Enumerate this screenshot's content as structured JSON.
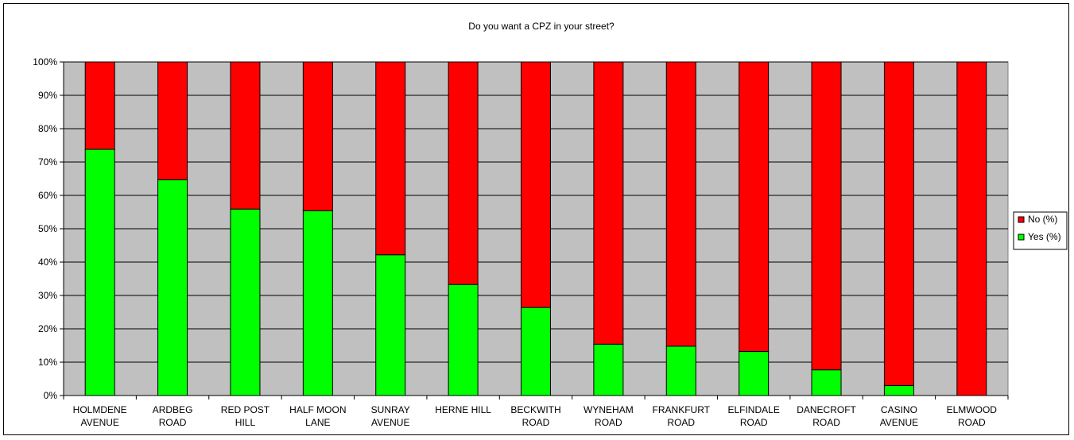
{
  "chart_data": {
    "type": "bar",
    "stacked": true,
    "title": "Do you want a CPZ in your street?",
    "xlabel": "",
    "ylabel": "",
    "ylim": [
      0,
      100
    ],
    "yticks": [
      "0%",
      "10%",
      "20%",
      "30%",
      "40%",
      "50%",
      "60%",
      "70%",
      "80%",
      "90%",
      "100%"
    ],
    "categories": [
      [
        "HOLMDENE",
        "AVENUE"
      ],
      [
        "ARDBEG",
        "ROAD"
      ],
      [
        "RED POST",
        "HILL"
      ],
      [
        "HALF MOON",
        "LANE"
      ],
      [
        "SUNRAY",
        "AVENUE"
      ],
      [
        "HERNE HILL"
      ],
      [
        "BECKWITH",
        "ROAD"
      ],
      [
        "WYNEHAM",
        "ROAD"
      ],
      [
        "FRANKFURT",
        "ROAD"
      ],
      [
        "ELFINDALE",
        "ROAD"
      ],
      [
        "DANECROFT",
        "ROAD"
      ],
      [
        "CASINO",
        "AVENUE"
      ],
      [
        "ELMWOOD",
        "ROAD"
      ]
    ],
    "series": [
      {
        "name": "Yes (%)",
        "color": "#00ff00",
        "values": [
          73.8,
          64.7,
          55.9,
          55.4,
          42.2,
          33.3,
          26.4,
          15.4,
          14.8,
          13.2,
          7.7,
          3.0,
          0
        ]
      },
      {
        "name": "No (%)",
        "color": "#ff0000",
        "values": [
          26.2,
          35.3,
          44.1,
          44.6,
          57.8,
          66.7,
          73.6,
          84.6,
          85.2,
          86.8,
          92.3,
          97.0,
          100
        ]
      }
    ],
    "legend": {
      "position": "right",
      "order": [
        "No (%)",
        "Yes (%)"
      ]
    },
    "plot_background": "#c0c0c0",
    "grid": true
  }
}
